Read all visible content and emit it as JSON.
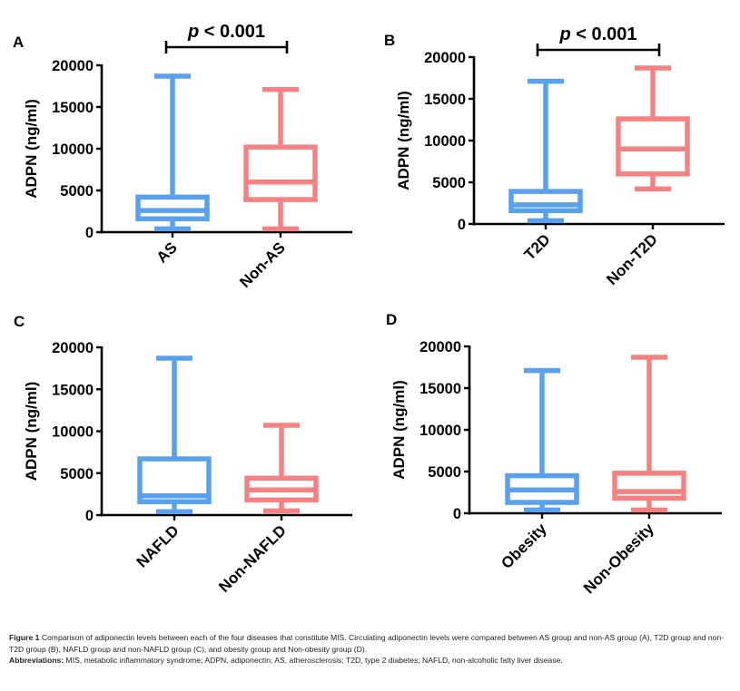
{
  "colors": {
    "group1": "#5aa0f0",
    "group2": "#f58282",
    "axis": "#000000"
  },
  "chart_data": [
    {
      "type": "boxplot",
      "panel": "A",
      "ylabel": "ADPN (ng/ml)",
      "ylim": [
        0,
        20000
      ],
      "yticks": [
        "0",
        "5000",
        "10000",
        "15000",
        "20000"
      ],
      "yticks_values": [
        0,
        5000,
        10000,
        15000,
        20000
      ],
      "categories": [
        "AS",
        "Non-AS"
      ],
      "significance": "p < 0.001",
      "boxes": [
        {
          "name": "AS",
          "min": 400,
          "q1": 1600,
          "median": 2600,
          "q3": 4200,
          "max": 18700
        },
        {
          "name": "Non-AS",
          "min": 400,
          "q1": 3900,
          "median": 6000,
          "q3": 10200,
          "max": 17100
        }
      ]
    },
    {
      "type": "boxplot",
      "panel": "B",
      "ylabel": "ADPN (ng/ml)",
      "ylim": [
        0,
        20000
      ],
      "yticks": [
        "0",
        "5000",
        "10000",
        "15000",
        "20000"
      ],
      "yticks_values": [
        0,
        5000,
        10000,
        15000,
        20000
      ],
      "categories": [
        "T2D",
        "Non-T2D"
      ],
      "significance": "p < 0.001",
      "boxes": [
        {
          "name": "T2D",
          "min": 400,
          "q1": 1600,
          "median": 2300,
          "q3": 3900,
          "max": 17100
        },
        {
          "name": "Non-T2D",
          "min": 4200,
          "q1": 6000,
          "median": 9000,
          "q3": 12600,
          "max": 18700
        }
      ]
    },
    {
      "type": "boxplot",
      "panel": "C",
      "ylabel": "ADPN (ng/ml)",
      "ylim": [
        0,
        20000
      ],
      "yticks": [
        "0",
        "5000",
        "10000",
        "15000",
        "20000"
      ],
      "yticks_values": [
        0,
        5000,
        10000,
        15000,
        20000
      ],
      "categories": [
        "NAFLD",
        "Non-NAFLD"
      ],
      "significance": "",
      "boxes": [
        {
          "name": "NAFLD",
          "min": 400,
          "q1": 1600,
          "median": 2300,
          "q3": 6700,
          "max": 18700
        },
        {
          "name": "Non-NAFLD",
          "min": 500,
          "q1": 1800,
          "median": 3000,
          "q3": 4400,
          "max": 10700
        }
      ]
    },
    {
      "type": "boxplot",
      "panel": "D",
      "ylabel": "ADPN (ng/ml)",
      "ylim": [
        0,
        20000
      ],
      "yticks": [
        "0",
        "5000",
        "10000",
        "15000",
        "20000"
      ],
      "yticks_values": [
        0,
        5000,
        10000,
        15000,
        20000
      ],
      "categories": [
        "Obesity",
        "Non-Obesity"
      ],
      "significance": "",
      "boxes": [
        {
          "name": "Obesity",
          "min": 400,
          "q1": 1300,
          "median": 2800,
          "q3": 4500,
          "max": 17100
        },
        {
          "name": "Non-Obesity",
          "min": 400,
          "q1": 1800,
          "median": 2600,
          "q3": 4800,
          "max": 18700
        }
      ]
    }
  ],
  "caption": {
    "figure_label": "Figure 1",
    "text": " Comparison of adiponectin levels between each of the four diseases that constitute MIS. Circulating adiponectin levels were compared between AS group and non-AS group (A), T2D group and non-T2D group (B), NAFLD group and non-NAFLD group (C), and obesity group and Non-obesity group (D).",
    "abbrev_label": "Abbreviations:",
    "abbrev_text": " MIS, metabolic inflammatory syndrome; ADPN, adiponectin; AS, atherosclerosis; T2D, type 2 diabetes; NAFLD, non-alcoholic fatty liver disease."
  }
}
